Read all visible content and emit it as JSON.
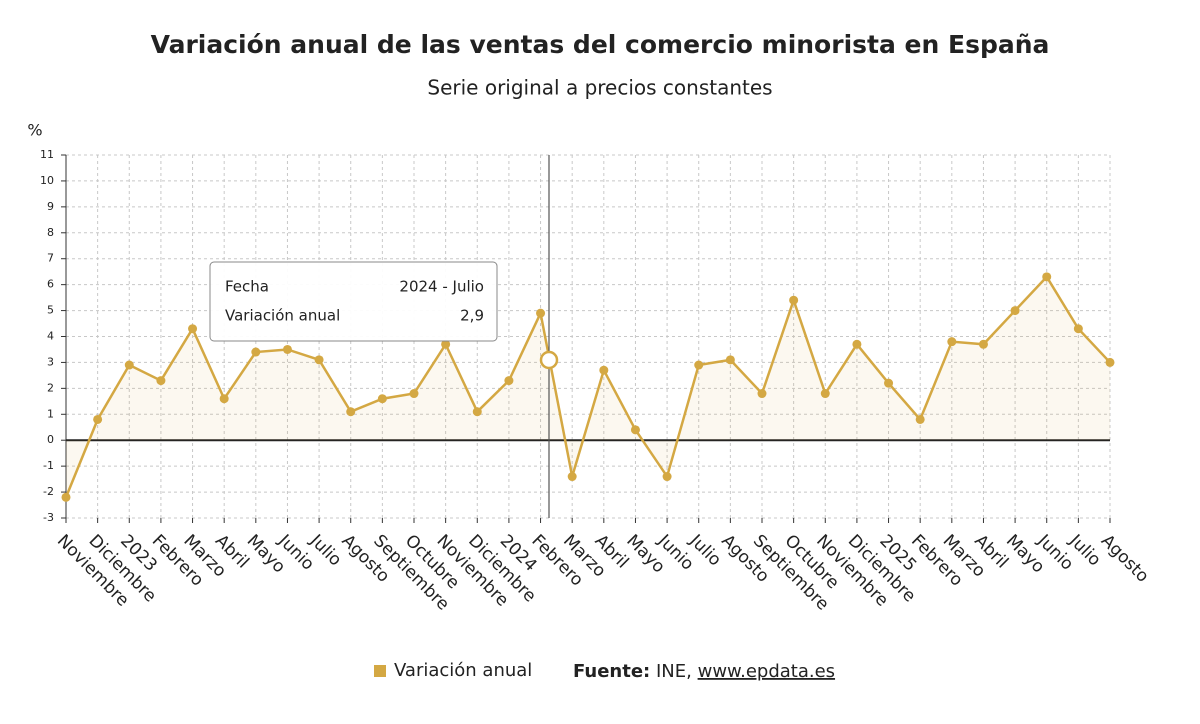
{
  "chart_data": {
    "type": "line",
    "title": "Variación anual de las ventas del comercio minorista en España",
    "subtitle": "Serie original a precios constantes",
    "y_label": "%",
    "categories": [
      "Noviembre",
      "Diciembre",
      "2023",
      "Febrero",
      "Marzo",
      "Abril",
      "Mayo",
      "Junio",
      "Julio",
      "Agosto",
      "Septiembre",
      "Octubre",
      "Noviembre",
      "Diciembre",
      "2024",
      "Febrero",
      "Marzo",
      "Abril",
      "Mayo",
      "Junio",
      "Julio",
      "Agosto",
      "Septiembre",
      "Octubre",
      "Noviembre",
      "Diciembre",
      "2025",
      "Febrero",
      "Marzo",
      "Abril",
      "Mayo",
      "Junio",
      "Julio",
      "Agosto"
    ],
    "series": [
      {
        "name": "Variación anual",
        "color": "#d4a843",
        "values": [
          -2.2,
          0.8,
          2.9,
          2.3,
          4.3,
          1.6,
          3.4,
          3.5,
          3.1,
          1.1,
          1.6,
          1.8,
          3.7,
          1.1,
          2.3,
          4.9,
          -1.4,
          2.7,
          0.4,
          -1.4,
          2.9,
          3.1,
          1.8,
          5.4,
          1.8,
          3.7,
          2.2,
          0.8,
          3.8,
          3.7,
          5.0,
          6.3,
          4.3,
          3.0
        ]
      }
    ],
    "ylim": [
      -3,
      11
    ],
    "yticks": [
      -3,
      -2,
      -1,
      0,
      1,
      2,
      3,
      4,
      5,
      6,
      7,
      8,
      9,
      10,
      11
    ],
    "grid": true,
    "tooltip": {
      "rows": [
        [
          "Fecha",
          "2024 - Julio"
        ],
        [
          "Variación anual",
          "2,9"
        ]
      ]
    },
    "source": {
      "label": "Fuente:",
      "text": "INE,",
      "link": "www.epdata.es"
    }
  }
}
